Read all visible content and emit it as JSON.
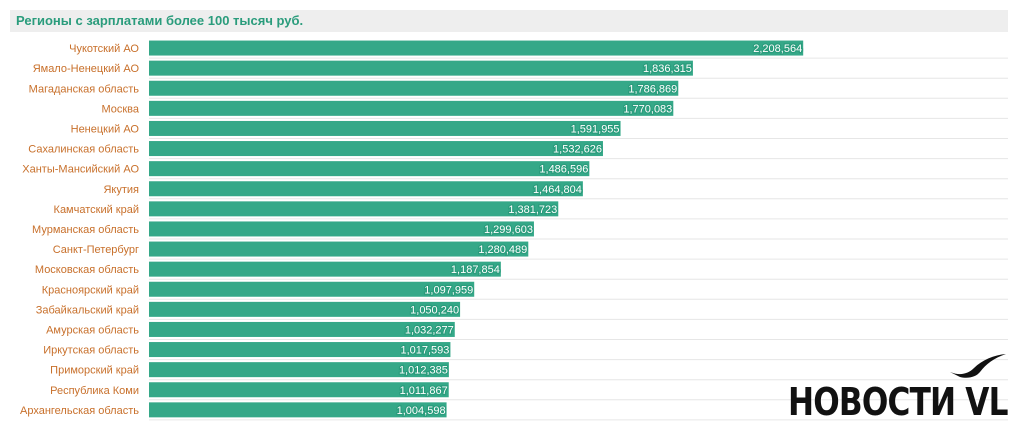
{
  "chart_data": {
    "type": "bar",
    "orientation": "horizontal",
    "title": "Регионы с зарплатами более 100 тысяч руб.",
    "categories": [
      "Чукотский АО",
      "Ямало-Ненецкий АО",
      "Магаданская область",
      "Москва",
      "Ненецкий АО",
      "Сахалинская область",
      "Ханты-Мансийский АО",
      "Якутия",
      "Камчатский край",
      "Мурманская область",
      "Санкт-Петербург",
      "Московская область",
      "Красноярский край",
      "Забайкальский край",
      "Амурская область",
      "Иркутская область",
      "Приморский край",
      "Республика Коми",
      "Архангельская область"
    ],
    "values": [
      2208564,
      1836315,
      1786869,
      1770083,
      1591955,
      1532626,
      1486596,
      1464804,
      1381723,
      1299603,
      1280489,
      1187854,
      1097959,
      1050240,
      1032277,
      1017593,
      1012385,
      1011867,
      1004598
    ],
    "value_labels": [
      "2,208,564",
      "1,836,315",
      "1,786,869",
      "1,770,083",
      "1,591,955",
      "1,532,626",
      "1,486,596",
      "1,464,804",
      "1,381,723",
      "1,299,603",
      "1,280,489",
      "1,187,854",
      "1,097,959",
      "1,050,240",
      "1,032,277",
      "1,017,593",
      "1,012,385",
      "1,011,867",
      "1,004,598"
    ],
    "xlim": [
      0,
      2900000
    ],
    "xlabel": "",
    "ylabel": "",
    "grid": true,
    "legend": "none",
    "colors": {
      "bar": "#35a888",
      "title": "#2a9c7c",
      "category_label": "#c8702b"
    }
  },
  "logo": {
    "text": "НОВОСТИ VL",
    "icon": "bird-wing-icon"
  }
}
